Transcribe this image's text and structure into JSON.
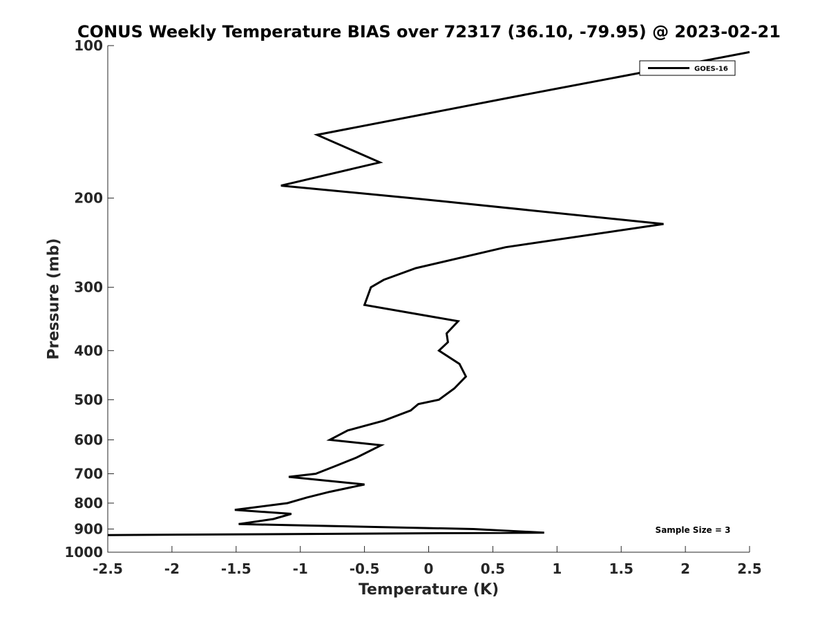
{
  "chart_data": {
    "type": "line",
    "title": "CONUS Weekly Temperature BIAS over 72317 (36.10, -79.95) @ 2023-02-21",
    "xlabel": "Temperature (K)",
    "ylabel": "Pressure (mb)",
    "xlim": [
      -2.5,
      2.5
    ],
    "ylim": [
      1000,
      100
    ],
    "yscale": "log",
    "y_reversed": true,
    "grid": false,
    "legend_position": "top-right",
    "x_ticks": [
      -2.5,
      -2,
      -1.5,
      -1,
      -0.5,
      0,
      0.5,
      1,
      1.5,
      2,
      2.5
    ],
    "x_tick_labels": [
      "-2.5",
      "-2",
      "-1.5",
      "-1",
      "-0.5",
      "0",
      "0.5",
      "1",
      "1.5",
      "2",
      "2.5"
    ],
    "y_ticks": [
      100,
      200,
      300,
      400,
      500,
      600,
      700,
      800,
      900,
      1000
    ],
    "y_tick_labels": [
      "100",
      "200",
      "300",
      "400",
      "500",
      "600",
      "700",
      "800",
      "900",
      "1000"
    ],
    "annotation": "Sample Size = 3",
    "series": [
      {
        "name": "GOES-16",
        "color": "#000000",
        "points": [
          [
            2.5,
            103
          ],
          [
            0.75,
            125
          ],
          [
            -0.87,
            150
          ],
          [
            -0.38,
            170
          ],
          [
            -1.15,
            189
          ],
          [
            -0.13,
            200
          ],
          [
            1.83,
            225
          ],
          [
            0.6,
            250
          ],
          [
            -0.1,
            275
          ],
          [
            -0.35,
            290
          ],
          [
            -0.45,
            300
          ],
          [
            -0.5,
            325
          ],
          [
            0.23,
            350
          ],
          [
            0.14,
            370
          ],
          [
            0.15,
            385
          ],
          [
            0.08,
            400
          ],
          [
            0.24,
            425
          ],
          [
            0.29,
            450
          ],
          [
            0.2,
            475
          ],
          [
            0.08,
            500
          ],
          [
            -0.08,
            510
          ],
          [
            -0.14,
            525
          ],
          [
            -0.35,
            550
          ],
          [
            -0.63,
            575
          ],
          [
            -0.77,
            600
          ],
          [
            -0.37,
            615
          ],
          [
            -0.56,
            650
          ],
          [
            -0.72,
            675
          ],
          [
            -0.88,
            700
          ],
          [
            -1.09,
            710
          ],
          [
            -0.5,
            735
          ],
          [
            -0.77,
            760
          ],
          [
            -0.95,
            780
          ],
          [
            -1.1,
            800
          ],
          [
            -1.51,
            825
          ],
          [
            -1.07,
            840
          ],
          [
            -1.21,
            860
          ],
          [
            -1.48,
            880
          ],
          [
            0.35,
            900
          ],
          [
            0.9,
            915
          ],
          [
            -2.5,
            925
          ]
        ]
      }
    ]
  }
}
